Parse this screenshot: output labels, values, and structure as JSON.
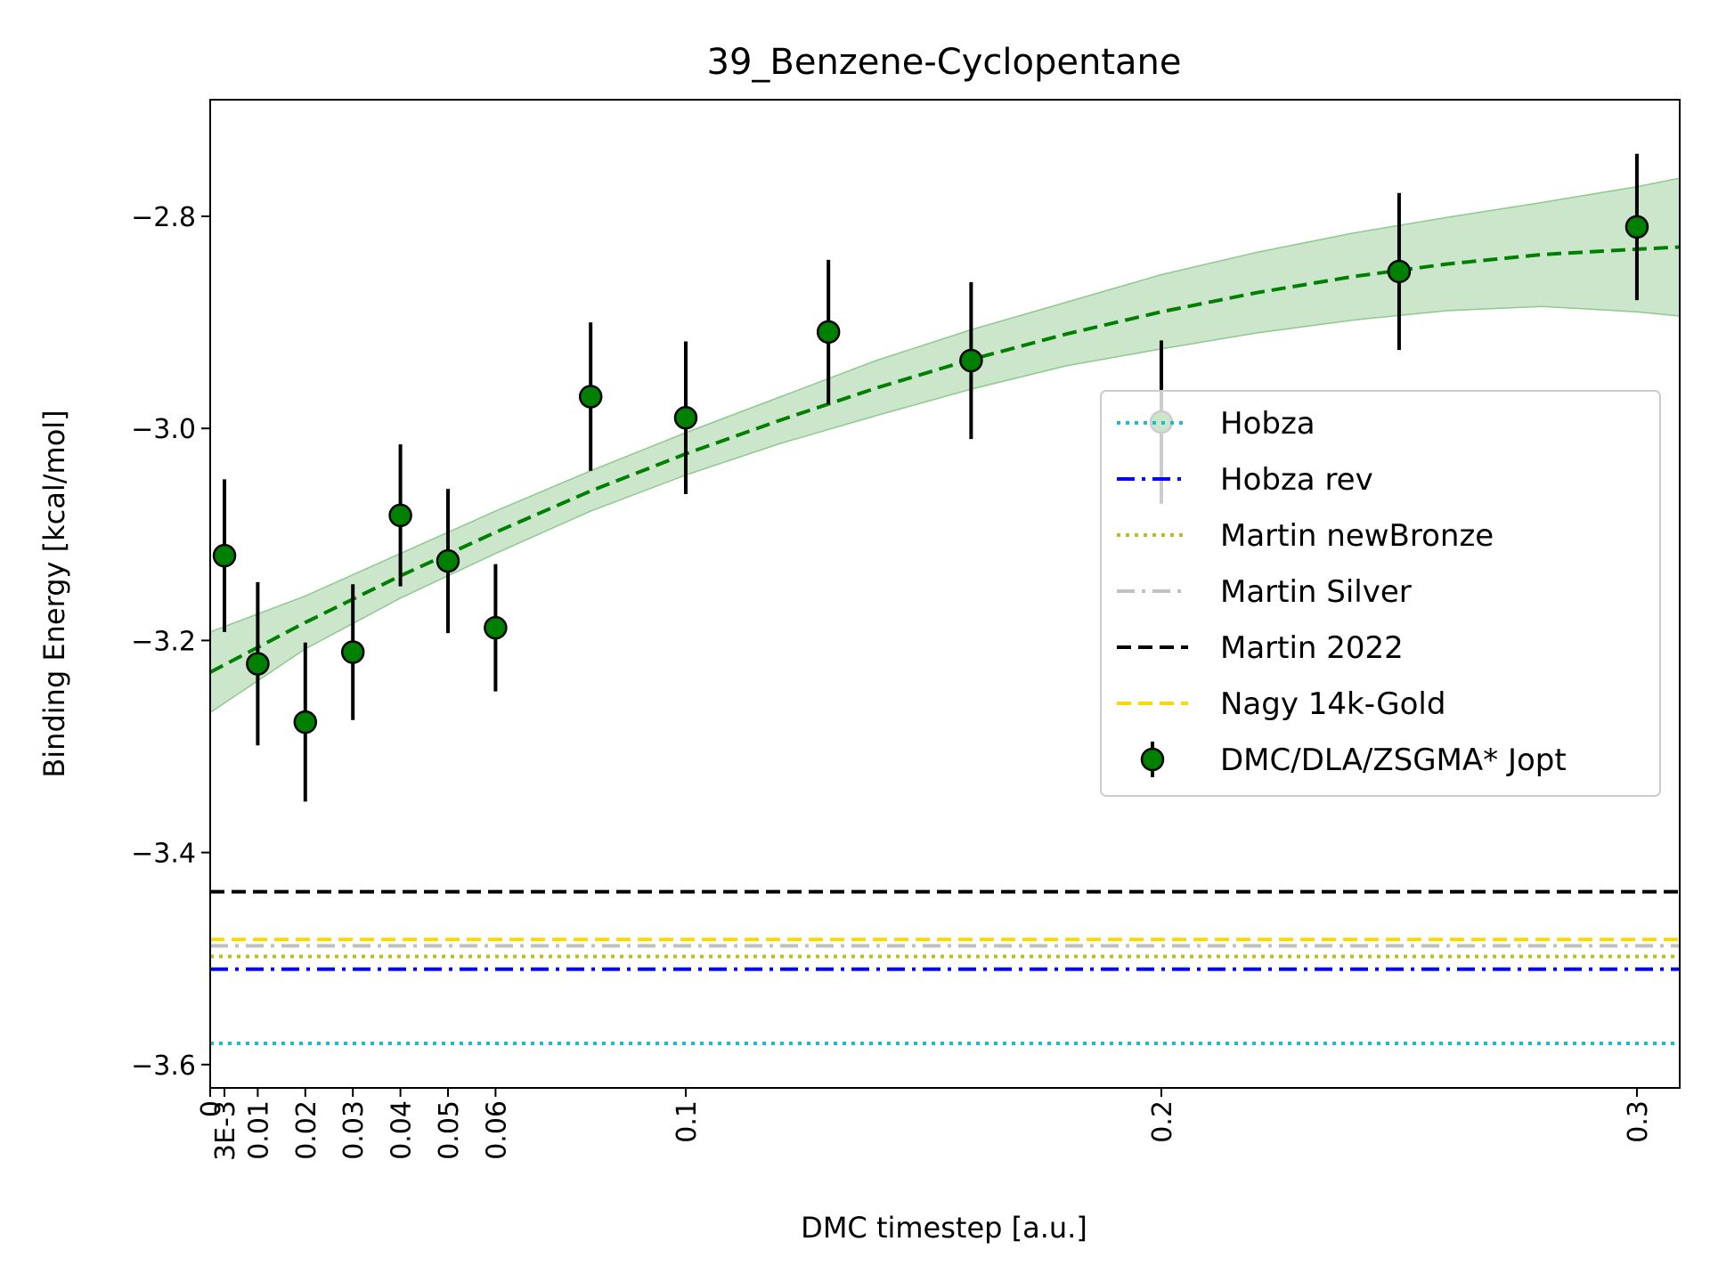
{
  "chart_data": {
    "type": "scatter",
    "title": "39_Benzene-Cyclopentane",
    "xlabel": "DMC timestep [a.u.]",
    "ylabel": "Binding Energy [kcal/mol]",
    "xlim": [
      0,
      0.309
    ],
    "ylim": [
      -3.622,
      -2.69
    ],
    "xticks": [
      {
        "value": 0,
        "label": "0"
      },
      {
        "value": 0.003,
        "label": "3E-3"
      },
      {
        "value": 0.01,
        "label": "0.01"
      },
      {
        "value": 0.02,
        "label": "0.02"
      },
      {
        "value": 0.03,
        "label": "0.03"
      },
      {
        "value": 0.04,
        "label": "0.04"
      },
      {
        "value": 0.05,
        "label": "0.05"
      },
      {
        "value": 0.06,
        "label": "0.06"
      },
      {
        "value": 0.1,
        "label": "0.1"
      },
      {
        "value": 0.2,
        "label": "0.2"
      },
      {
        "value": 0.3,
        "label": "0.3"
      }
    ],
    "yticks": [
      {
        "value": -2.8,
        "label": "−2.8"
      },
      {
        "value": -3.0,
        "label": "−3.0"
      },
      {
        "value": -3.2,
        "label": "−3.2"
      },
      {
        "value": -3.4,
        "label": "−3.4"
      },
      {
        "value": -3.6,
        "label": "−3.6"
      }
    ],
    "reference_lines": [
      {
        "name": "Hobza",
        "y": -3.58,
        "color": "#17becf",
        "dash": "dotted"
      },
      {
        "name": "Hobza rev",
        "y": -3.51,
        "color": "#0000ff",
        "dash": "dashdot"
      },
      {
        "name": "Martin newBronze",
        "y": -3.498,
        "color": "#bcbd22",
        "dash": "dotted"
      },
      {
        "name": "Martin Silver",
        "y": -3.488,
        "color": "#c0c0c0",
        "dash": "dashdot"
      },
      {
        "name": "Martin 2022",
        "y": -3.437,
        "color": "#000000",
        "dash": "dashed"
      },
      {
        "name": "Nagy 14k-Gold",
        "y": -3.482,
        "color": "#ffd700",
        "dash": "dashed"
      }
    ],
    "series": [
      {
        "name": "DMC/DLA/ZSGMA* Jopt",
        "color": "#008000",
        "points": [
          {
            "x": 0.003,
            "y": -3.12,
            "err": 0.072
          },
          {
            "x": 0.01,
            "y": -3.222,
            "err": 0.077
          },
          {
            "x": 0.02,
            "y": -3.277,
            "err": 0.075
          },
          {
            "x": 0.03,
            "y": -3.211,
            "err": 0.064
          },
          {
            "x": 0.04,
            "y": -3.082,
            "err": 0.067
          },
          {
            "x": 0.05,
            "y": -3.125,
            "err": 0.068
          },
          {
            "x": 0.06,
            "y": -3.188,
            "err": 0.06
          },
          {
            "x": 0.08,
            "y": -2.97,
            "err": 0.07
          },
          {
            "x": 0.1,
            "y": -2.99,
            "err": 0.072
          },
          {
            "x": 0.13,
            "y": -2.909,
            "err": 0.068
          },
          {
            "x": 0.16,
            "y": -2.936,
            "err": 0.074
          },
          {
            "x": 0.2,
            "y": -2.994,
            "err": 0.077
          },
          {
            "x": 0.25,
            "y": -2.852,
            "err": 0.074
          },
          {
            "x": 0.3,
            "y": -2.81,
            "err": 0.069
          }
        ]
      }
    ],
    "fit": {
      "color": "#008000",
      "band_color": "#a8d5a8",
      "x": [
        0,
        0.02,
        0.04,
        0.06,
        0.08,
        0.1,
        0.12,
        0.14,
        0.16,
        0.18,
        0.2,
        0.22,
        0.24,
        0.26,
        0.28,
        0.3,
        0.309
      ],
      "y": [
        -3.23,
        -3.183,
        -3.139,
        -3.098,
        -3.059,
        -3.024,
        -2.992,
        -2.962,
        -2.935,
        -2.911,
        -2.89,
        -2.872,
        -2.857,
        -2.845,
        -2.836,
        -2.831,
        -2.829
      ],
      "lower": [
        -3.268,
        -3.208,
        -3.16,
        -3.118,
        -3.078,
        -3.044,
        -3.014,
        -2.988,
        -2.963,
        -2.941,
        -2.925,
        -2.91,
        -2.898,
        -2.889,
        -2.885,
        -2.89,
        -2.894
      ],
      "upper": [
        -3.192,
        -3.158,
        -3.118,
        -3.078,
        -3.04,
        -3.004,
        -2.97,
        -2.936,
        -2.907,
        -2.881,
        -2.855,
        -2.834,
        -2.816,
        -2.801,
        -2.787,
        -2.772,
        -2.764
      ]
    },
    "legend": {
      "position": "right"
    },
    "grid": false
  }
}
